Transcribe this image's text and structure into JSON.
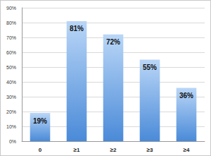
{
  "chart_data": {
    "type": "bar",
    "categories": [
      "0",
      "≥1",
      "≥2",
      "≥3",
      "≥4"
    ],
    "values": [
      19,
      81,
      72,
      55,
      36
    ],
    "value_labels": [
      "19%",
      "81%",
      "72%",
      "55%",
      "36%"
    ],
    "data_labels": true,
    "color": "#4a8ad8",
    "ylim": [
      0,
      90
    ],
    "yticks": [
      {
        "value": 0,
        "label": "0%"
      },
      {
        "value": 10,
        "label": "10%"
      },
      {
        "value": 20,
        "label": "20%"
      },
      {
        "value": 30,
        "label": "30%"
      },
      {
        "value": 40,
        "label": "40%"
      },
      {
        "value": 50,
        "label": "50%"
      },
      {
        "value": 60,
        "label": "60%"
      },
      {
        "value": 70,
        "label": "70%"
      },
      {
        "value": 80,
        "label": "80%"
      },
      {
        "value": 90,
        "label": "90%"
      }
    ],
    "grid": true
  }
}
